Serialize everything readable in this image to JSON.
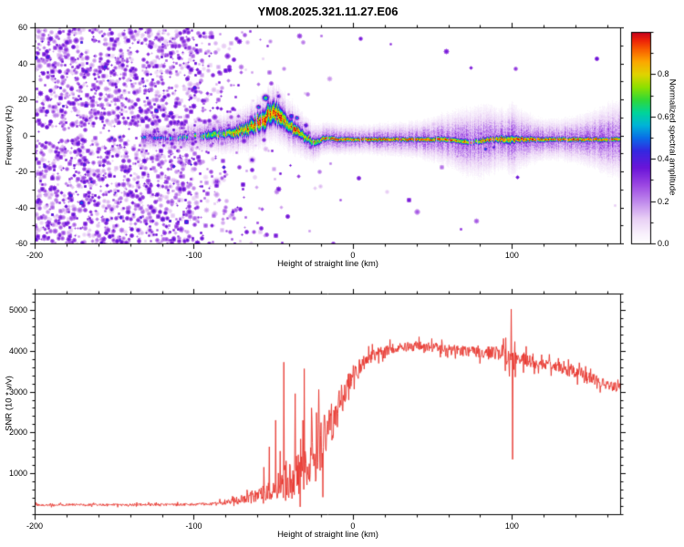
{
  "title": "YM08.2025.321.11.27.E06",
  "chart_data": [
    {
      "type": "heatmap",
      "title": "YM08.2025.321.11.27.E06",
      "xlabel": "Height of straight line (km)",
      "ylabel": "Frequency (Hz)",
      "xlim": [
        -200,
        168
      ],
      "ylim": [
        -60,
        60
      ],
      "x_ticks": [
        -200,
        -100,
        0,
        100
      ],
      "y_ticks": [
        -60,
        -40,
        -20,
        0,
        20,
        40,
        60
      ],
      "grid": false,
      "colorbar": {
        "label": "Normalized spectral amplitude",
        "ticks": [
          0.0,
          0.2,
          0.4,
          0.6,
          0.8
        ],
        "range": [
          0,
          1
        ]
      },
      "colormap": [
        [
          0.0,
          "#ffffff"
        ],
        [
          0.05,
          "#f8f0fc"
        ],
        [
          0.12,
          "#e8cef5"
        ],
        [
          0.2,
          "#c089ec"
        ],
        [
          0.28,
          "#9a45e2"
        ],
        [
          0.36,
          "#6a14d8"
        ],
        [
          0.44,
          "#3428e0"
        ],
        [
          0.5,
          "#0a6ce8"
        ],
        [
          0.56,
          "#00b4d8"
        ],
        [
          0.62,
          "#00d49a"
        ],
        [
          0.68,
          "#30d838"
        ],
        [
          0.74,
          "#8ce000"
        ],
        [
          0.8,
          "#e0d400"
        ],
        [
          0.86,
          "#fca800"
        ],
        [
          0.92,
          "#f85c00"
        ],
        [
          0.96,
          "#ee2408"
        ],
        [
          1.0,
          "#c4001c"
        ]
      ],
      "noise_density": [
        [
          -200,
          0.92
        ],
        [
          -170,
          0.92
        ],
        [
          -140,
          0.9
        ],
        [
          -120,
          0.88
        ],
        [
          -105,
          0.8
        ],
        [
          -97,
          0.55
        ],
        [
          -92,
          0.38
        ],
        [
          -86,
          0.28
        ],
        [
          -80,
          0.22
        ],
        [
          -74,
          0.16
        ],
        [
          -68,
          0.12
        ],
        [
          -60,
          0.09
        ],
        [
          -50,
          0.07
        ],
        [
          -40,
          0.05
        ],
        [
          -30,
          0.03
        ],
        [
          -15,
          0.012
        ],
        [
          0,
          0.006
        ],
        [
          50,
          0.004
        ],
        [
          100,
          0.004
        ],
        [
          168,
          0.003
        ]
      ],
      "band": [
        [
          -133,
          -1,
          0.55,
          1.6
        ],
        [
          -126,
          -1,
          0.5,
          1.6
        ],
        [
          -118,
          -1,
          0.55,
          1.8
        ],
        [
          -110,
          -1,
          0.6,
          2.0
        ],
        [
          -103,
          -0.5,
          0.65,
          2.2
        ],
        [
          -96,
          0,
          0.7,
          2.6
        ],
        [
          -90,
          0.5,
          0.72,
          3.0
        ],
        [
          -84,
          1,
          0.75,
          3.2
        ],
        [
          -78,
          1.5,
          0.78,
          3.4
        ],
        [
          -72,
          2.5,
          0.82,
          4.0
        ],
        [
          -66,
          4,
          0.88,
          5.0
        ],
        [
          -61,
          6.5,
          0.92,
          6.0
        ],
        [
          -56,
          9.5,
          0.95,
          7.0
        ],
        [
          -52,
          12,
          0.93,
          7.5
        ],
        [
          -48,
          12.5,
          0.95,
          7.0
        ],
        [
          -44,
          9,
          0.92,
          6.0
        ],
        [
          -40,
          5.5,
          0.88,
          5.0
        ],
        [
          -36,
          3,
          0.85,
          4.2
        ],
        [
          -32,
          0.5,
          0.82,
          3.6
        ],
        [
          -28,
          -2,
          0.78,
          3.2
        ],
        [
          -25,
          -4,
          0.75,
          2.8
        ],
        [
          -22,
          -3,
          0.8,
          2.4
        ],
        [
          -19,
          -1.5,
          0.88,
          2.0
        ],
        [
          -15,
          -1.5,
          0.93,
          1.8
        ],
        [
          -10,
          -2,
          0.96,
          1.6
        ],
        [
          0,
          -2,
          0.97,
          1.5
        ],
        [
          15,
          -2,
          0.97,
          1.5
        ],
        [
          30,
          -2,
          0.97,
          1.5
        ],
        [
          45,
          -2,
          0.96,
          1.6
        ],
        [
          55,
          -2,
          0.96,
          1.8
        ],
        [
          63,
          -2.5,
          0.95,
          1.8
        ],
        [
          70,
          -3,
          0.88,
          2.0
        ],
        [
          74,
          -3.5,
          0.78,
          2.2
        ],
        [
          78,
          -3,
          0.85,
          2.0
        ],
        [
          82,
          -2.5,
          0.92,
          2.0
        ],
        [
          86,
          -2,
          0.95,
          2.0
        ],
        [
          90,
          -2,
          0.93,
          2.2
        ],
        [
          94,
          -2,
          0.9,
          2.6
        ],
        [
          98,
          -2,
          0.88,
          3.0
        ],
        [
          101,
          -2,
          0.92,
          2.6
        ],
        [
          105,
          -2,
          0.95,
          2.0
        ],
        [
          112,
          -2,
          0.96,
          1.8
        ],
        [
          125,
          -2,
          0.96,
          1.6
        ],
        [
          140,
          -2,
          0.96,
          1.6
        ],
        [
          155,
          -2,
          0.95,
          1.6
        ],
        [
          168,
          -2,
          0.95,
          1.6
        ]
      ],
      "halo_width": [
        [
          -133,
          3
        ],
        [
          -100,
          4
        ],
        [
          -70,
          6
        ],
        [
          -50,
          8
        ],
        [
          -30,
          6
        ],
        [
          -20,
          4.5
        ],
        [
          -5,
          4
        ],
        [
          10,
          4
        ],
        [
          25,
          4.5
        ],
        [
          40,
          5
        ],
        [
          50,
          6
        ],
        [
          60,
          7.5
        ],
        [
          70,
          9
        ],
        [
          80,
          10
        ],
        [
          88,
          9
        ],
        [
          95,
          8
        ],
        [
          100,
          10
        ],
        [
          105,
          8
        ],
        [
          115,
          6
        ],
        [
          125,
          5.5
        ],
        [
          135,
          6
        ],
        [
          145,
          7
        ],
        [
          155,
          8.5
        ],
        [
          162,
          10
        ],
        [
          168,
          11
        ]
      ],
      "blobs": [
        [
          -55,
          21,
          0.7,
          2
        ],
        [
          -50,
          17,
          0.5,
          1.5
        ],
        [
          -60,
          16,
          0.55,
          1.5
        ],
        [
          -47,
          22,
          0.4,
          1.5
        ],
        [
          -152,
          -1,
          0.5,
          1.2
        ],
        [
          -147,
          -0.5,
          0.45,
          1.2
        ],
        [
          -86,
          -25,
          0.35,
          2
        ],
        [
          -64,
          -13,
          0.4,
          1.5
        ],
        [
          83,
          -7,
          0.55,
          1.2
        ],
        [
          88,
          -6,
          0.5,
          1
        ],
        [
          -36,
          10,
          0.5,
          1.5
        ],
        [
          -30,
          6,
          0.45,
          1.5
        ]
      ],
      "gaps": [
        [
          -133,
          -96,
          0.5
        ],
        [
          -96,
          -80,
          0.18
        ],
        [
          72,
          78,
          0.55
        ],
        [
          95,
          100,
          0.25
        ]
      ],
      "seed": 20251121
    },
    {
      "type": "line",
      "xlabel": "Height of straight line (km)",
      "ylabel": "SNR (10 * v/v)",
      "xlim": [
        -200,
        168
      ],
      "ylim": [
        0,
        5400
      ],
      "x_ticks": [
        -200,
        -100,
        0,
        100
      ],
      "y_ticks": [
        1000,
        2000,
        3000,
        4000,
        5000
      ],
      "grid": false,
      "line_color": "#e8342c",
      "envelope": [
        [
          -200,
          230,
          60
        ],
        [
          -150,
          230,
          60
        ],
        [
          -115,
          235,
          65
        ],
        [
          -95,
          245,
          70
        ],
        [
          -85,
          265,
          90
        ],
        [
          -78,
          300,
          140
        ],
        [
          -72,
          360,
          220
        ],
        [
          -66,
          420,
          300
        ],
        [
          -60,
          470,
          380
        ],
        [
          -54,
          540,
          460
        ],
        [
          -49,
          640,
          600
        ],
        [
          -45,
          780,
          900
        ],
        [
          -41,
          850,
          1050
        ],
        [
          -37,
          950,
          1300
        ],
        [
          -33,
          1050,
          1450
        ],
        [
          -29,
          1200,
          1550
        ],
        [
          -25,
          1380,
          1550
        ],
        [
          -21,
          1600,
          1500
        ],
        [
          -17,
          1900,
          1350
        ],
        [
          -13,
          2250,
          1150
        ],
        [
          -9,
          2600,
          950
        ],
        [
          -5,
          3000,
          750
        ],
        [
          -1,
          3300,
          550
        ],
        [
          4,
          3600,
          420
        ],
        [
          10,
          3820,
          330
        ],
        [
          18,
          3980,
          290
        ],
        [
          28,
          4080,
          270
        ],
        [
          40,
          4120,
          260
        ],
        [
          52,
          4080,
          260
        ],
        [
          64,
          4020,
          270
        ],
        [
          75,
          3970,
          290
        ],
        [
          85,
          3960,
          320
        ],
        [
          93,
          3940,
          380
        ],
        [
          100,
          3780,
          550
        ],
        [
          107,
          3800,
          400
        ],
        [
          115,
          3720,
          330
        ],
        [
          125,
          3620,
          300
        ],
        [
          138,
          3480,
          290
        ],
        [
          150,
          3320,
          280
        ],
        [
          160,
          3170,
          270
        ],
        [
          168,
          3080,
          260
        ]
      ],
      "spikes": [
        [
          -56,
          1150
        ],
        [
          -52.5,
          1650
        ],
        [
          -48.4,
          2300
        ],
        [
          -43.5,
          3720
        ],
        [
          -36.2,
          2950
        ],
        [
          -30.6,
          3560
        ],
        [
          -26,
          2600
        ],
        [
          -21.5,
          3050
        ],
        [
          99.4,
          5020
        ],
        [
          100.3,
          1340
        ]
      ],
      "seed": 4207
    }
  ]
}
